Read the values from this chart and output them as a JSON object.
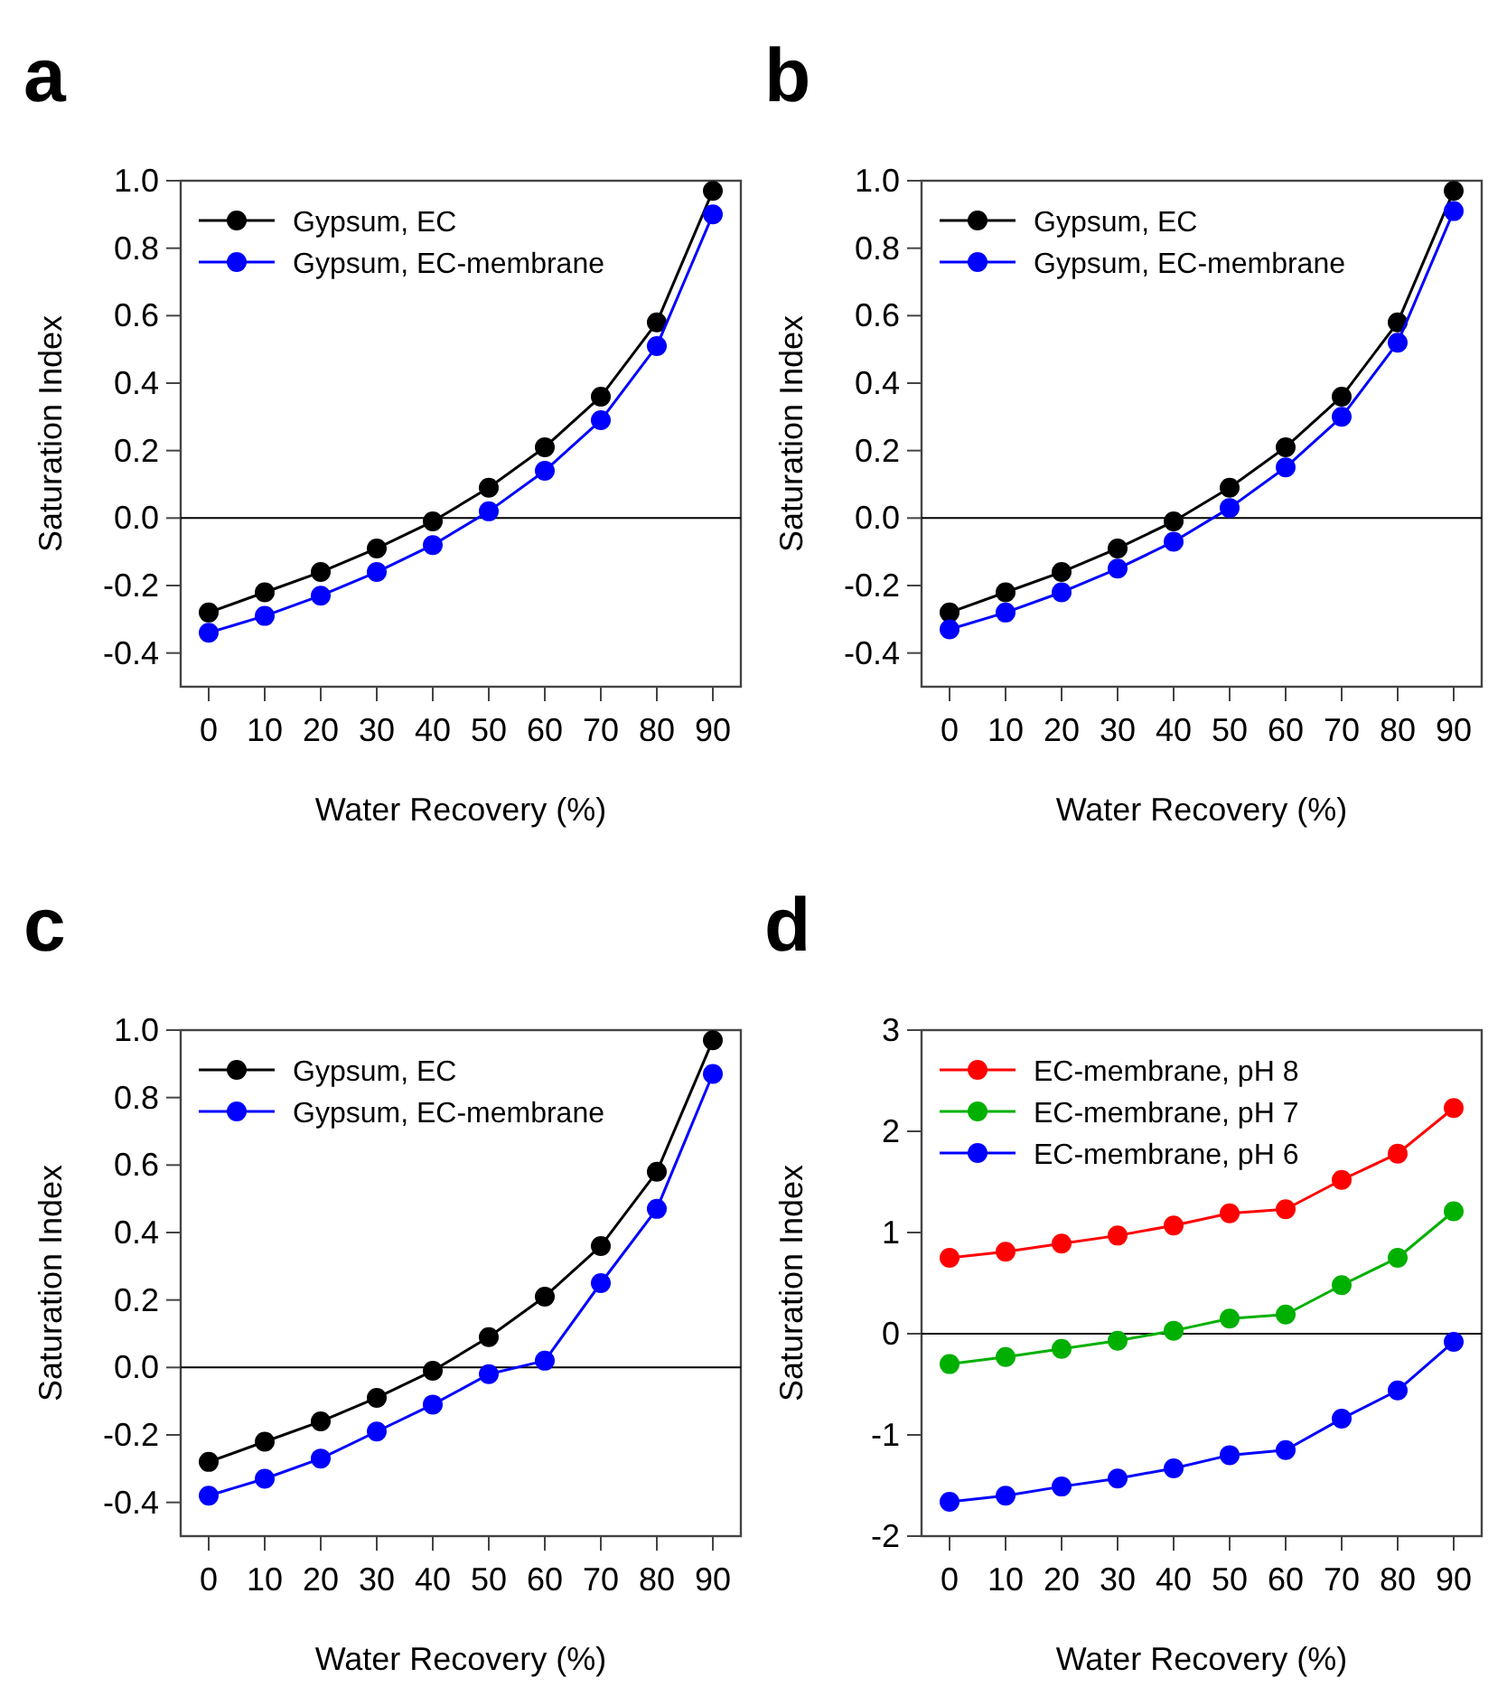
{
  "chart_data": [
    {
      "type": "line",
      "title": "a",
      "xlabel": "Water Recovery (%)",
      "ylabel": "Saturation Index",
      "x": [
        0,
        10,
        20,
        30,
        40,
        50,
        60,
        70,
        80,
        90
      ],
      "xlim": [
        -5,
        95
      ],
      "xticks": [
        0,
        10,
        20,
        30,
        40,
        50,
        60,
        70,
        80,
        90
      ],
      "ylim": [
        -0.5,
        1.0
      ],
      "yticks": [
        {
          "value": -0.4,
          "label": "-0.4"
        },
        {
          "value": -0.2,
          "label": "-0.2"
        },
        {
          "value": 0,
          "label": "0.0"
        },
        {
          "value": 0.2,
          "label": "0.2"
        },
        {
          "value": 0.4,
          "label": "0.4"
        },
        {
          "value": 0.6,
          "label": "0.6"
        },
        {
          "value": 0.8,
          "label": "0.8"
        },
        {
          "value": 1,
          "label": "1.0"
        }
      ],
      "grid": false,
      "legend": "top left",
      "marker": "circle",
      "line_style": "solid",
      "ref_lines": [
        {
          "axis": "y",
          "value": 0,
          "color": "#000000"
        }
      ],
      "series": [
        {
          "name": "Gypsum, EC",
          "color": "#000000",
          "values": [
            -0.28,
            -0.22,
            -0.16,
            -0.09,
            -0.01,
            0.09,
            0.21,
            0.36,
            0.58,
            0.97
          ]
        },
        {
          "name": "Gypsum, EC-membrane",
          "color": "#0000ff",
          "values": [
            -0.34,
            -0.29,
            -0.23,
            -0.16,
            -0.08,
            0.02,
            0.14,
            0.29,
            0.51,
            0.9
          ]
        }
      ]
    },
    {
      "type": "line",
      "title": "b",
      "xlabel": "Water Recovery (%)",
      "ylabel": "Saturation Index",
      "x": [
        0,
        10,
        20,
        30,
        40,
        50,
        60,
        70,
        80,
        90
      ],
      "xlim": [
        -5,
        95
      ],
      "xticks": [
        0,
        10,
        20,
        30,
        40,
        50,
        60,
        70,
        80,
        90
      ],
      "ylim": [
        -0.5,
        1.0
      ],
      "yticks": [
        {
          "value": -0.4,
          "label": "-0.4"
        },
        {
          "value": -0.2,
          "label": "-0.2"
        },
        {
          "value": 0,
          "label": "0.0"
        },
        {
          "value": 0.2,
          "label": "0.2"
        },
        {
          "value": 0.4,
          "label": "0.4"
        },
        {
          "value": 0.6,
          "label": "0.6"
        },
        {
          "value": 0.8,
          "label": "0.8"
        },
        {
          "value": 1,
          "label": "1.0"
        }
      ],
      "grid": false,
      "legend": "top left",
      "marker": "circle",
      "line_style": "solid",
      "ref_lines": [
        {
          "axis": "y",
          "value": 0,
          "color": "#000000"
        }
      ],
      "series": [
        {
          "name": "Gypsum, EC",
          "color": "#000000",
          "values": [
            -0.28,
            -0.22,
            -0.16,
            -0.09,
            -0.01,
            0.09,
            0.21,
            0.36,
            0.58,
            0.97
          ]
        },
        {
          "name": "Gypsum, EC-membrane",
          "color": "#0000ff",
          "values": [
            -0.33,
            -0.28,
            -0.22,
            -0.15,
            -0.07,
            0.03,
            0.15,
            0.3,
            0.52,
            0.91
          ]
        }
      ]
    },
    {
      "type": "line",
      "title": "c",
      "xlabel": "Water Recovery (%)",
      "ylabel": "Saturation Index",
      "x": [
        0,
        10,
        20,
        30,
        40,
        50,
        60,
        70,
        80,
        90
      ],
      "xlim": [
        -5,
        95
      ],
      "xticks": [
        0,
        10,
        20,
        30,
        40,
        50,
        60,
        70,
        80,
        90
      ],
      "ylim": [
        -0.5,
        1.0
      ],
      "yticks": [
        {
          "value": -0.4,
          "label": "-0.4"
        },
        {
          "value": -0.2,
          "label": "-0.2"
        },
        {
          "value": 0,
          "label": "0.0"
        },
        {
          "value": 0.2,
          "label": "0.2"
        },
        {
          "value": 0.4,
          "label": "0.4"
        },
        {
          "value": 0.6,
          "label": "0.6"
        },
        {
          "value": 0.8,
          "label": "0.8"
        },
        {
          "value": 1,
          "label": "1.0"
        }
      ],
      "grid": false,
      "legend": "top left",
      "marker": "circle",
      "line_style": "solid",
      "ref_lines": [
        {
          "axis": "y",
          "value": 0,
          "color": "#000000"
        }
      ],
      "series": [
        {
          "name": "Gypsum, EC",
          "color": "#000000",
          "values": [
            -0.28,
            -0.22,
            -0.16,
            -0.09,
            -0.01,
            0.09,
            0.21,
            0.36,
            0.58,
            0.97
          ]
        },
        {
          "name": "Gypsum, EC-membrane",
          "color": "#0000ff",
          "values": [
            -0.38,
            -0.33,
            -0.27,
            -0.19,
            -0.11,
            -0.02,
            0.02,
            0.25,
            0.47,
            0.87
          ]
        }
      ]
    },
    {
      "type": "line",
      "title": "d",
      "xlabel": "Water Recovery (%)",
      "ylabel": "Saturation Index",
      "x": [
        0,
        10,
        20,
        30,
        40,
        50,
        60,
        70,
        80,
        90
      ],
      "xlim": [
        -5,
        95
      ],
      "xticks": [
        0,
        10,
        20,
        30,
        40,
        50,
        60,
        70,
        80,
        90
      ],
      "ylim": [
        -2,
        3
      ],
      "yticks": [
        -2,
        -1,
        0,
        1,
        2,
        3
      ],
      "grid": false,
      "legend": "top left",
      "marker": "circle",
      "line_style": "solid",
      "ref_lines": [
        {
          "axis": "y",
          "value": 0,
          "color": "#000000"
        }
      ],
      "series": [
        {
          "name": "EC-membrane, pH 8",
          "color": "#ff0000",
          "values": [
            0.75,
            0.81,
            0.89,
            0.97,
            1.07,
            1.19,
            1.23,
            1.52,
            1.78,
            2.23
          ]
        },
        {
          "name": "EC-membrane, pH 7",
          "color": "#00b000",
          "values": [
            -0.3,
            -0.23,
            -0.15,
            -0.07,
            0.03,
            0.15,
            0.19,
            0.48,
            0.75,
            1.21
          ]
        },
        {
          "name": "EC-membrane, pH 6",
          "color": "#0000ff",
          "values": [
            -1.66,
            -1.6,
            -1.51,
            -1.43,
            -1.33,
            -1.2,
            -1.15,
            -0.84,
            -0.56,
            -0.08
          ]
        }
      ]
    }
  ]
}
